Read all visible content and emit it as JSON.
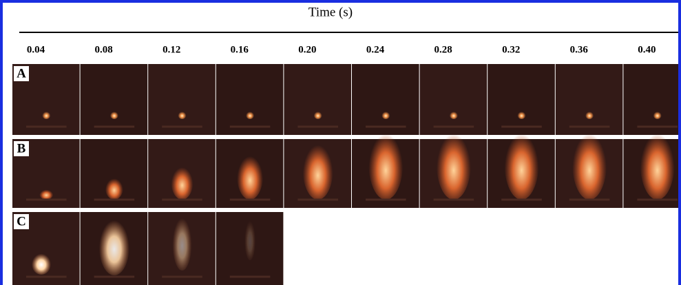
{
  "header": {
    "title": "Time (s)"
  },
  "times": [
    "0.04",
    "0.08",
    "0.12",
    "0.16",
    "0.20",
    "0.24",
    "0.28",
    "0.32",
    "0.36",
    "0.40"
  ],
  "rows": [
    {
      "label": "A"
    },
    {
      "label": "B"
    },
    {
      "label": "C"
    }
  ]
}
